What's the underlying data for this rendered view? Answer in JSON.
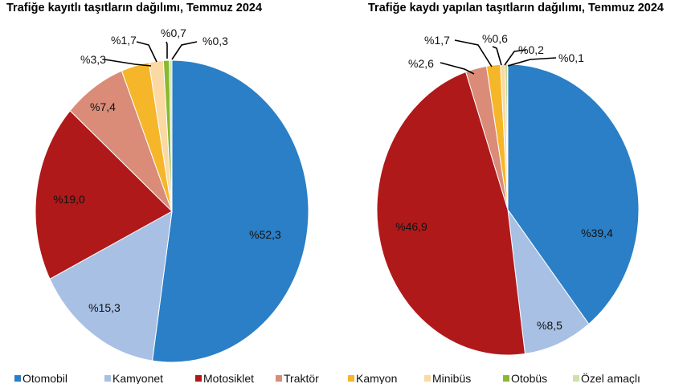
{
  "legend": [
    "Otomobil",
    "Kamyonet",
    "Motosiklet",
    "Traktör",
    "Kamyon",
    "Minibüs",
    "Otobüs",
    "Özel amaçlı"
  ],
  "colors": [
    "#2a7fc6",
    "#a7c0e4",
    "#b0191a",
    "#da8c78",
    "#f5b62a",
    "#fad9a3",
    "#8ab833",
    "#cde3a6"
  ],
  "chart_data": [
    {
      "type": "pie",
      "title": "Trafiğe kayıtlı taşıtların dağılımı, Temmuz 2024",
      "categories": [
        "Otomobil",
        "Kamyonet",
        "Motosiklet",
        "Traktör",
        "Kamyon",
        "Minibüs",
        "Otobüs",
        "Özel amaçlı"
      ],
      "values": [
        52.3,
        15.3,
        19.0,
        7.4,
        3.3,
        1.7,
        0.7,
        0.3
      ],
      "labels": [
        "%52,3",
        "%15,3",
        "%19,0",
        "%7,4",
        "%3,3",
        "%1,7",
        "%0,7",
        "%0,3"
      ]
    },
    {
      "type": "pie",
      "title": "Trafiğe kaydı yapılan taşıtların dağılımı, Temmuz 2024",
      "categories": [
        "Otomobil",
        "Kamyonet",
        "Motosiklet",
        "Traktör",
        "Kamyon",
        "Minibüs",
        "Otobüs",
        "Özel amaçlı"
      ],
      "values": [
        39.4,
        8.5,
        46.9,
        2.6,
        1.7,
        0.6,
        0.2,
        0.1
      ],
      "labels": [
        "%39,4",
        "%8,5",
        "%46,9",
        "%2,6",
        "%1,7",
        "%0,6",
        "%0,2",
        "%0,1"
      ]
    }
  ]
}
